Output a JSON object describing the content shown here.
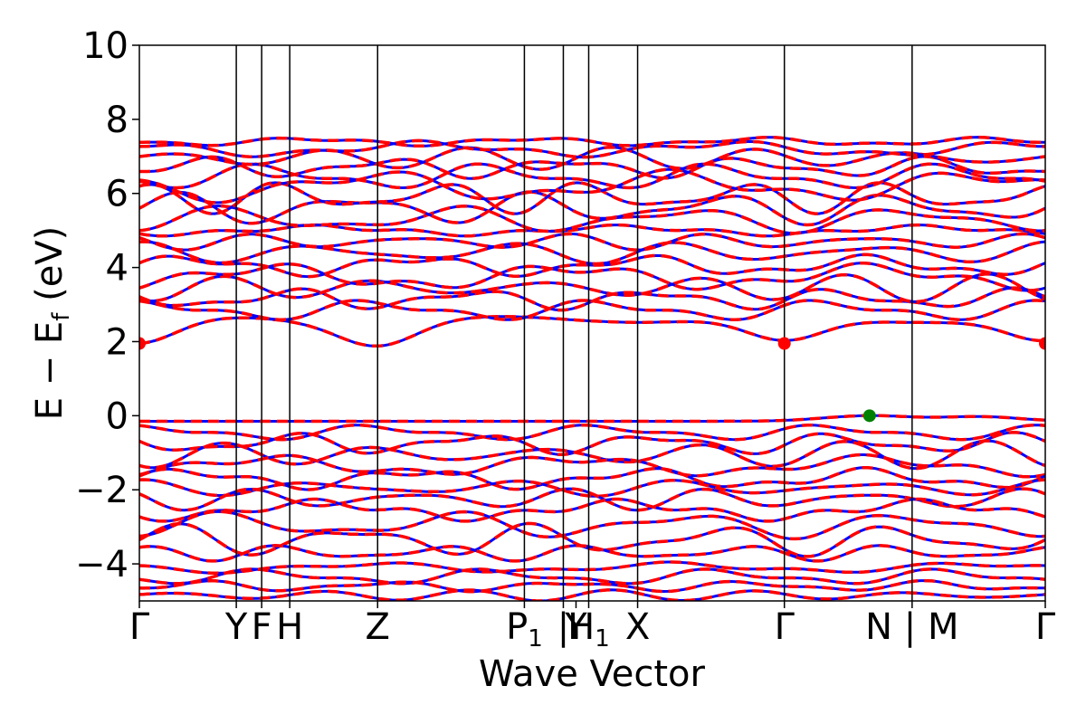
{
  "chart_data": {
    "type": "line",
    "title": "",
    "xlabel": "Wave Vector",
    "ylabel_main": "E − E",
    "ylabel_sub": "f",
    "ylabel_unit": " (eV)",
    "ylim": [
      -5,
      10
    ],
    "yticks": [
      {
        "value": 10,
        "label": "10"
      },
      {
        "value": 8,
        "label": "8"
      },
      {
        "value": 6,
        "label": "6"
      },
      {
        "value": 4,
        "label": "4"
      },
      {
        "value": 2,
        "label": "2"
      },
      {
        "value": 0,
        "label": "0"
      },
      {
        "value": -2,
        "label": "−2"
      },
      {
        "value": -4,
        "label": "−4"
      }
    ],
    "kpath": [
      {
        "label": "Γ",
        "x": 0.0
      },
      {
        "label": "Y",
        "x": 0.107
      },
      {
        "label": "F",
        "x": 0.135
      },
      {
        "label": "H",
        "x": 0.166
      },
      {
        "label": "Z",
        "x": 0.263
      },
      {
        "label": "P",
        "sub": "1",
        "x": 0.425
      },
      {
        "label": "Y",
        "sub": "",
        "x": 0.468
      },
      {
        "label": "H",
        "sub": "1",
        "x": 0.496
      },
      {
        "label": "X",
        "x": 0.55
      },
      {
        "label": "Γ",
        "x": 0.712
      },
      {
        "label": "N",
        "x": 0.853
      },
      {
        "label": "M",
        "x": 0.853
      },
      {
        "label": "Γ",
        "x": 1.0
      }
    ],
    "tick_labels": [
      {
        "text": "Γ",
        "x": 0.0
      },
      {
        "text": "Y",
        "x": 0.107
      },
      {
        "text": "F",
        "x": 0.135
      },
      {
        "text": "H",
        "x": 0.166
      },
      {
        "text": "Z",
        "x": 0.263
      },
      {
        "text": "P",
        "sub": "1",
        "x": 0.425
      },
      {
        "text": "|",
        "x": 0.468
      },
      {
        "text": "Y",
        "x": 0.482
      },
      {
        "text": "H",
        "sub": "1",
        "x": 0.496
      },
      {
        "text": "X",
        "x": 0.55
      },
      {
        "text": "Γ",
        "x": 0.712
      },
      {
        "text": "N | M",
        "x": 0.853
      },
      {
        "text": "Γ",
        "x": 1.0
      }
    ],
    "special_points": [
      {
        "name": "cbm",
        "x": 0.0,
        "y": 1.95,
        "color": "#ff0000"
      },
      {
        "name": "cbm",
        "x": 0.712,
        "y": 1.95,
        "color": "#ff0000"
      },
      {
        "name": "cbm",
        "x": 1.0,
        "y": 1.95,
        "color": "#ff0000"
      },
      {
        "name": "vbm",
        "x": 0.806,
        "y": 0.0,
        "color": "#008000"
      }
    ],
    "series": [
      {
        "color": "#0000ff",
        "style": "solid"
      },
      {
        "color": "#ff0000",
        "style": "dashed"
      }
    ],
    "bands_valence": [
      {
        "base": -0.15,
        "amp": 0.02
      },
      {
        "base": -0.45,
        "amp": 0.15
      },
      {
        "base": -0.75,
        "amp": 0.2
      },
      {
        "base": -1.05,
        "amp": 0.25
      },
      {
        "base": -1.35,
        "amp": 0.2
      },
      {
        "base": -1.7,
        "amp": 0.2
      },
      {
        "base": -1.95,
        "amp": 0.15
      },
      {
        "base": -2.25,
        "amp": 0.2
      },
      {
        "base": -2.55,
        "amp": 0.2
      },
      {
        "base": -2.95,
        "amp": 0.25
      },
      {
        "base": -3.35,
        "amp": 0.3
      },
      {
        "base": -3.7,
        "amp": 0.15
      },
      {
        "base": -4.1,
        "amp": 0.1
      },
      {
        "base": -4.35,
        "amp": 0.15
      },
      {
        "base": -4.6,
        "amp": 0.1
      },
      {
        "base": -4.85,
        "amp": 0.1
      }
    ],
    "bands_conduction": [
      {
        "base": 2.6,
        "amp": 0.05
      },
      {
        "base": 2.85,
        "amp": 0.2
      },
      {
        "base": 3.15,
        "amp": 0.2
      },
      {
        "base": 3.45,
        "amp": 0.25
      },
      {
        "base": 3.75,
        "amp": 0.25
      },
      {
        "base": 4.05,
        "amp": 0.2
      },
      {
        "base": 4.4,
        "amp": 0.2
      },
      {
        "base": 4.7,
        "amp": 0.15
      },
      {
        "base": 5.0,
        "amp": 0.1
      },
      {
        "base": 5.3,
        "amp": 0.25
      },
      {
        "base": 5.6,
        "amp": 0.3
      },
      {
        "base": 5.9,
        "amp": 0.3
      },
      {
        "base": 6.2,
        "amp": 0.3
      },
      {
        "base": 6.45,
        "amp": 0.25
      },
      {
        "base": 6.7,
        "amp": 0.2
      },
      {
        "base": 6.95,
        "amp": 0.2
      },
      {
        "base": 7.2,
        "amp": 0.15
      },
      {
        "base": 7.4,
        "amp": 0.08
      }
    ]
  }
}
